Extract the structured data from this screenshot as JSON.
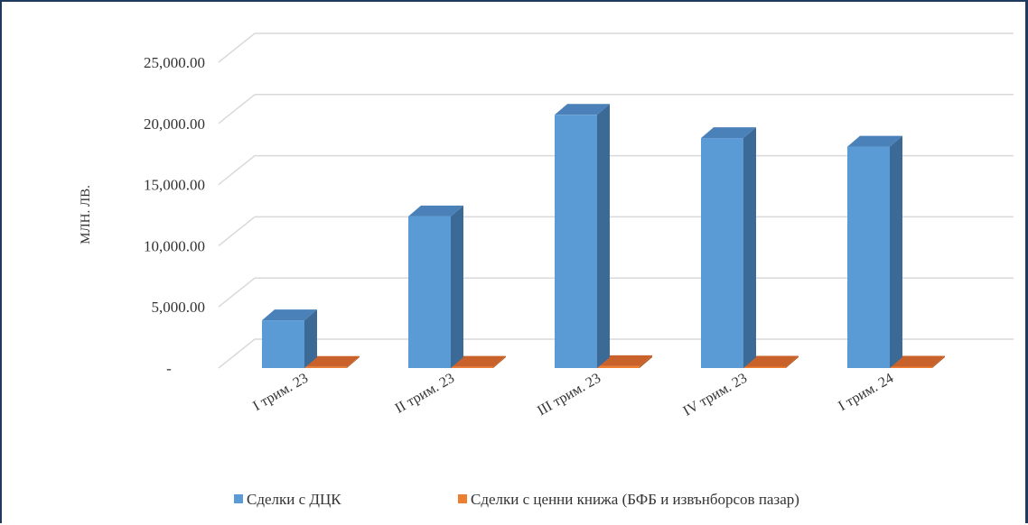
{
  "chart_data": {
    "type": "bar",
    "subtype": "3d-clustered-column",
    "title": "",
    "xlabel": "",
    "ylabel": "МЛН. ЛВ.",
    "ylim": [
      0,
      25000
    ],
    "y_ticks": [
      "-",
      "5,000.00",
      "10,000.00",
      "15,000.00",
      "20,000.00",
      "25,000.00"
    ],
    "y_tick_values": [
      0,
      5000,
      10000,
      15000,
      20000,
      25000
    ],
    "categories": [
      "I трим. 23",
      "II трим. 23",
      "III трим. 23",
      "IV трим. 23",
      "I трим. 24"
    ],
    "series": [
      {
        "name": "Сделки с ДЦК",
        "values": [
          3900,
          12400,
          20700,
          18800,
          18100
        ]
      },
      {
        "name": "Сделки с ценни книжа (БФБ и извънборсов пазар)",
        "values": [
          90,
          100,
          160,
          110,
          110
        ]
      }
    ],
    "gridlines": true,
    "legend_position": "bottom",
    "colors": {
      "series_0_front": "#5b9bd5",
      "series_0_side": "#3c6a96",
      "series_0_top": "#4a81b8",
      "series_1_front": "#ed7d31",
      "series_1_side": "#b55d24",
      "series_1_top": "#c9622a",
      "grid": "#d9d9d9",
      "frame": "#1f3a5f"
    }
  }
}
